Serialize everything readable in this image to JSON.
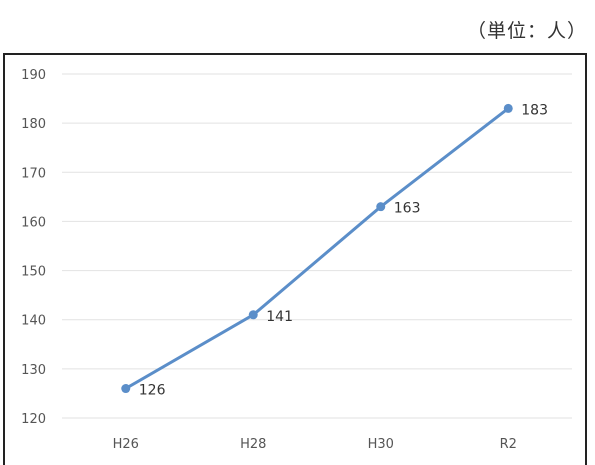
{
  "unit_label": "（単位：人）",
  "chart_data": {
    "type": "line",
    "title": "",
    "xlabel": "",
    "ylabel": "",
    "categories": [
      "H26",
      "H28",
      "H30",
      "R2"
    ],
    "series": [
      {
        "values": [
          126,
          141,
          163,
          183
        ],
        "data_labels": [
          "126",
          "141",
          "163",
          "183"
        ]
      }
    ],
    "ylim": [
      120,
      190
    ],
    "yticks": [
      120,
      130,
      140,
      150,
      160,
      170,
      180,
      190
    ],
    "grid": "horizontal",
    "legend": "none",
    "colors": {
      "line": "#5b8ec9",
      "grid": "#e2e2e2",
      "frame": "#222222"
    }
  }
}
